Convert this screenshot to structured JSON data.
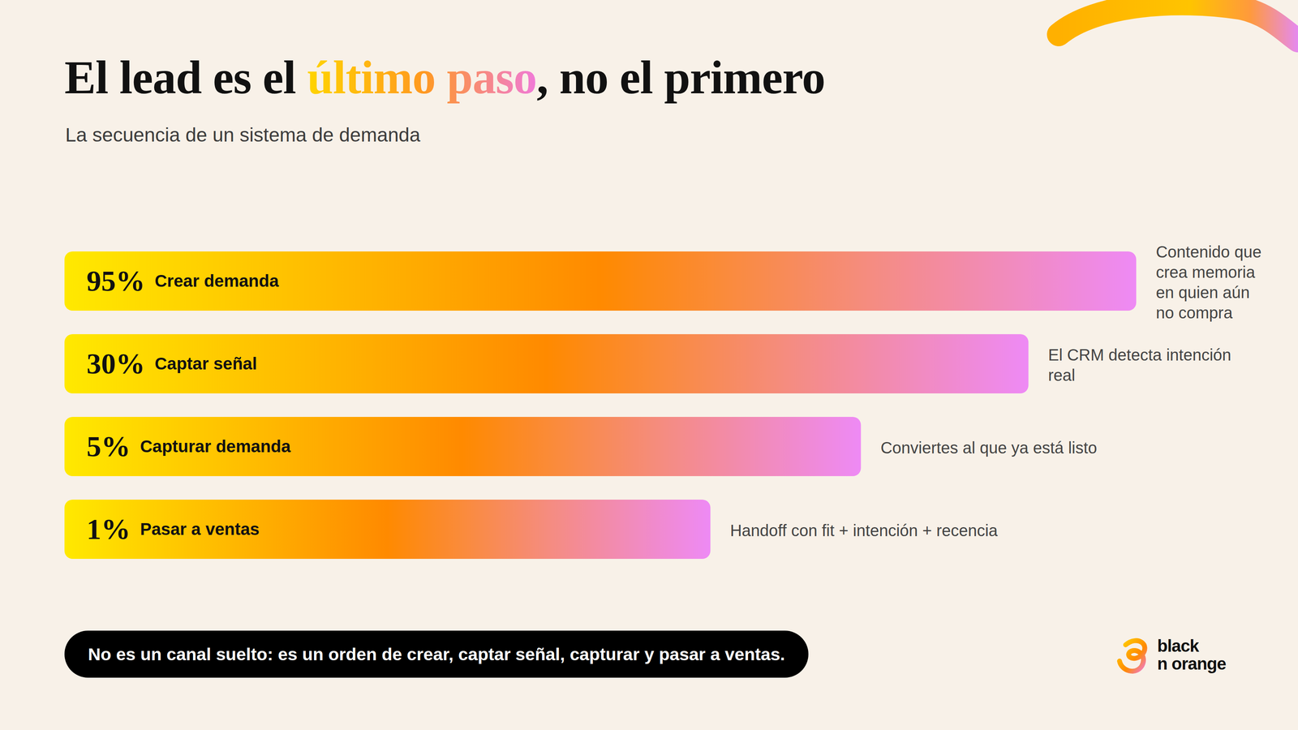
{
  "chart_data": {
    "type": "bar",
    "orientation": "horizontal",
    "title": "El lead es el último paso, no el primero",
    "title_highlight": "último paso",
    "subtitle": "La secuencia de un sistema de demanda",
    "categories": [
      "Crear demanda",
      "Captar señal",
      "Capturar demanda",
      "Pasar a ventas"
    ],
    "values": [
      95,
      30,
      5,
      1
    ],
    "value_labels": [
      "95%",
      "30%",
      "5%",
      "1%"
    ],
    "annotations": [
      "Contenido que crea memoria en quien aún no compra",
      "El CRM detecta intención real",
      "Conviertes al que ya está listo",
      "Handoff con fit + intención + recencia"
    ],
    "caption": "No es un canal suelto: es un orden de crear, captar señal, capturar y pasar a ventas.",
    "logo": [
      "black",
      "n orange"
    ],
    "color": "#FF8A00",
    "log": "x",
    "xlim": [
      0.001,
      100
    ],
    "tick_labels": false,
    "data_labels": true,
    "grid": false
  }
}
